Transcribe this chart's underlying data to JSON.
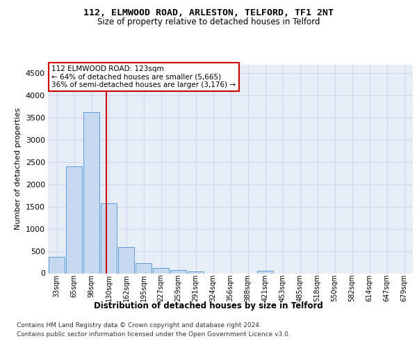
{
  "title_line1": "112, ELMWOOD ROAD, ARLESTON, TELFORD, TF1 2NT",
  "title_line2": "Size of property relative to detached houses in Telford",
  "xlabel": "Distribution of detached houses by size in Telford",
  "ylabel": "Number of detached properties",
  "footer_line1": "Contains HM Land Registry data © Crown copyright and database right 2024.",
  "footer_line2": "Contains public sector information licensed under the Open Government Licence v3.0.",
  "annotation_line1": "112 ELMWOOD ROAD: 123sqm",
  "annotation_line2": "← 64% of detached houses are smaller (5,665)",
  "annotation_line3": "36% of semi-detached houses are larger (3,176) →",
  "bar_labels": [
    "33sqm",
    "65sqm",
    "98sqm",
    "130sqm",
    "162sqm",
    "195sqm",
    "227sqm",
    "259sqm",
    "291sqm",
    "324sqm",
    "356sqm",
    "388sqm",
    "421sqm",
    "453sqm",
    "485sqm",
    "518sqm",
    "550sqm",
    "582sqm",
    "614sqm",
    "647sqm",
    "679sqm"
  ],
  "bar_values": [
    370,
    2400,
    3620,
    1580,
    590,
    220,
    110,
    65,
    45,
    0,
    0,
    0,
    60,
    0,
    0,
    0,
    0,
    0,
    0,
    0,
    0
  ],
  "bar_color": "#c6d9f1",
  "bar_edge_color": "#5b9bd5",
  "vline_color": "#cc0000",
  "vline_x": 2.87,
  "ylim": [
    0,
    4700
  ],
  "yticks": [
    0,
    500,
    1000,
    1500,
    2000,
    2500,
    3000,
    3500,
    4000,
    4500
  ],
  "grid_color": "#d0d8ec",
  "bg_color": "#e8eef8",
  "fig_bg_color": "#ffffff",
  "annotation_box_color": "#ffffff",
  "annotation_box_edge": "#cc0000",
  "title1_fontsize": 9.5,
  "title2_fontsize": 8.5,
  "ylabel_fontsize": 8,
  "xtick_fontsize": 7,
  "ytick_fontsize": 8,
  "footer_fontsize": 6.5
}
